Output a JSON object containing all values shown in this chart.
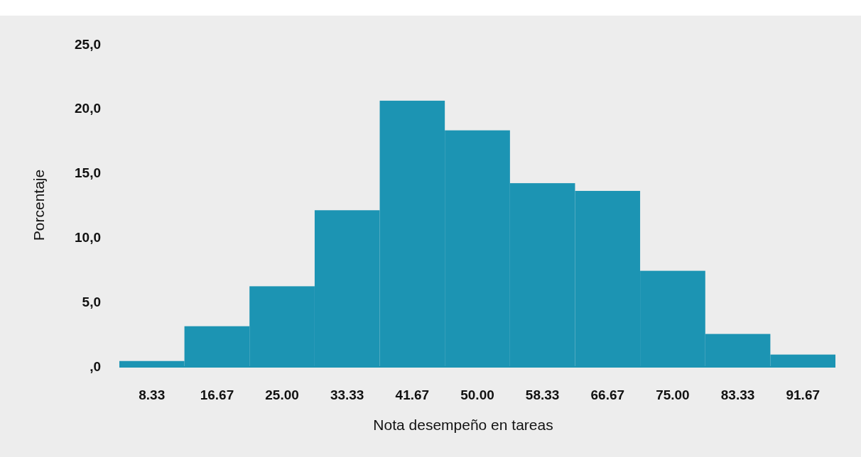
{
  "chart_data": {
    "type": "histogram",
    "xlabel": "Nota desempeño en tareas",
    "ylabel": "Porcentaje",
    "color": "#1c94b3",
    "bins": [
      4.17,
      12.5,
      20.83,
      29.17,
      37.5,
      45.83,
      54.17,
      62.5,
      70.83,
      79.17,
      87.5,
      95.83
    ],
    "values": [
      0.4,
      3.1,
      6.2,
      12.1,
      20.6,
      18.3,
      14.2,
      13.6,
      7.4,
      2.5,
      0.9
    ],
    "xlim": [
      4.17,
      95.83
    ],
    "xticks": [
      8.33,
      16.67,
      {
        "value": 25,
        "label": "25.00"
      },
      33.33,
      41.67,
      {
        "value": 50,
        "label": "50.00"
      },
      58.33,
      66.67,
      {
        "value": 75,
        "label": "75.00"
      },
      83.33,
      91.67
    ],
    "ylim": [
      0,
      25
    ],
    "yticks": [
      {
        "value": 0,
        "label": ",0"
      },
      {
        "value": 5,
        "label": "5,0"
      },
      {
        "value": 10,
        "label": "10,0"
      },
      {
        "value": 15,
        "label": "15,0"
      },
      {
        "value": 20,
        "label": "20,0"
      },
      {
        "value": 25,
        "label": "25,0"
      }
    ],
    "grid": false
  }
}
